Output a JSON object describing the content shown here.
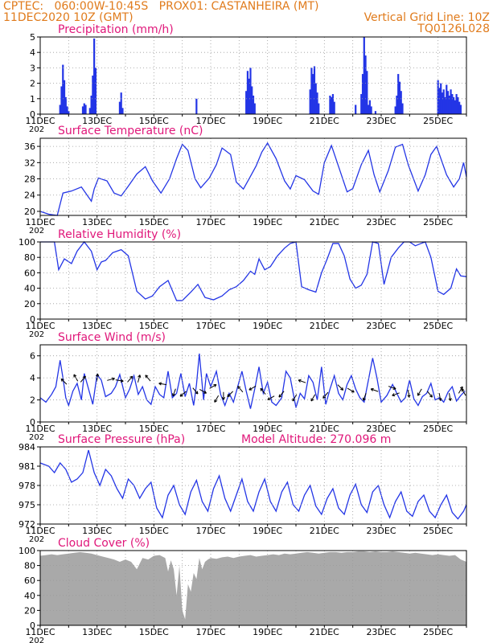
{
  "header": {
    "line1": "CPTEC:   060:00W-10:45S   PROX01: CASTANHEIRA (MT)",
    "line2_left": "11DEC2020 10Z (GMT)",
    "line2_right": "Vertical Grid Line: 10Z",
    "line3_right": "TQ0126L028"
  },
  "colors": {
    "header": "#e07b1c",
    "title": "#e0177a",
    "line": "#2335e6",
    "bar": "#2335e6",
    "cloud": "#a9a9a9",
    "arrow": "#000000",
    "grid": "#9a9a9a"
  },
  "x_axis": {
    "start_day": 11,
    "end_day": 26,
    "tick_labels": [
      "11DEC",
      "13DEC",
      "15DEC",
      "17DEC",
      "19DEC",
      "21DEC",
      "23DEC",
      "25DEC"
    ],
    "tick_days": [
      11,
      13,
      15,
      17,
      19,
      21,
      23,
      25
    ],
    "year_label": "202"
  },
  "chart_data": [
    {
      "type": "bar",
      "title": "Precipitation (mm/h)",
      "ylim": [
        0,
        5
      ],
      "yticks": [
        0,
        1,
        2,
        3,
        4,
        5
      ],
      "x": [
        11.7,
        11.75,
        11.8,
        11.85,
        11.9,
        11.95,
        12.0,
        12.5,
        12.55,
        12.6,
        12.75,
        12.8,
        12.85,
        12.9,
        12.95,
        13.8,
        13.85,
        13.9,
        16.5,
        18.25,
        18.3,
        18.35,
        18.4,
        18.45,
        18.5,
        18.55,
        20.5,
        20.55,
        20.6,
        20.65,
        20.7,
        20.75,
        20.8,
        21.2,
        21.25,
        21.3,
        21.35,
        22.1,
        22.3,
        22.35,
        22.4,
        22.45,
        22.5,
        22.55,
        22.6,
        22.65,
        22.8,
        23.5,
        23.55,
        23.6,
        23.65,
        23.7,
        23.75,
        25.0,
        25.05,
        25.1,
        25.15,
        25.2,
        25.25,
        25.3,
        25.35,
        25.4,
        25.45,
        25.5,
        25.55,
        25.6,
        25.65,
        25.7,
        25.75,
        25.8
      ],
      "values": [
        0.6,
        1.8,
        3.2,
        2.2,
        1.1,
        0.5,
        0.2,
        0.5,
        0.7,
        0.6,
        0.4,
        1.2,
        2.5,
        4.9,
        3.0,
        0.8,
        1.4,
        0.4,
        1.0,
        1.5,
        2.8,
        2.3,
        3.0,
        1.8,
        1.2,
        0.7,
        1.6,
        3.0,
        2.6,
        3.1,
        2.0,
        1.4,
        0.7,
        1.2,
        1.1,
        1.3,
        0.8,
        0.6,
        1.3,
        2.6,
        5.0,
        3.8,
        2.8,
        0.6,
        0.9,
        0.5,
        0.2,
        0.5,
        1.2,
        2.6,
        2.1,
        1.5,
        0.7,
        2.2,
        1.7,
        2.0,
        1.4,
        1.6,
        1.1,
        1.9,
        1.5,
        1.2,
        1.6,
        1.3,
        1.1,
        0.9,
        1.3,
        1.1,
        0.8,
        0.6
      ]
    },
    {
      "type": "line",
      "title": "Surface Temperature (nC)",
      "ylim": [
        19,
        38
      ],
      "yticks": [
        20,
        24,
        28,
        32,
        36
      ],
      "x": [
        11.0,
        11.3,
        11.6,
        11.8,
        12.1,
        12.45,
        12.65,
        12.8,
        12.9,
        13.05,
        13.35,
        13.6,
        13.85,
        14.1,
        14.4,
        14.7,
        14.95,
        15.25,
        15.55,
        15.8,
        16.0,
        16.2,
        16.45,
        16.65,
        16.95,
        17.2,
        17.4,
        17.7,
        17.9,
        18.15,
        18.35,
        18.6,
        18.8,
        19.0,
        19.3,
        19.6,
        19.8,
        20.0,
        20.3,
        20.6,
        20.8,
        21.0,
        21.25,
        21.55,
        21.8,
        22.0,
        22.3,
        22.55,
        22.75,
        22.95,
        23.25,
        23.5,
        23.75,
        23.95,
        24.3,
        24.55,
        24.75,
        24.95,
        25.3,
        25.55,
        25.75,
        25.9,
        26.0
      ],
      "values": [
        20.0,
        19.3,
        19.0,
        24.5,
        25.0,
        26.0,
        24.0,
        22.5,
        25.5,
        28.2,
        27.5,
        24.5,
        23.8,
        26.2,
        29.2,
        31.0,
        27.5,
        24.5,
        28.0,
        33.0,
        36.5,
        35.0,
        28.0,
        25.8,
        28.2,
        31.5,
        35.6,
        34.0,
        27.2,
        25.5,
        28.0,
        31.2,
        34.6,
        36.8,
        33.0,
        27.5,
        25.5,
        28.8,
        27.8,
        25.0,
        24.2,
        32.0,
        36.2,
        30.0,
        24.8,
        25.6,
        31.5,
        35.0,
        29.0,
        24.8,
        30.0,
        35.8,
        36.5,
        31.5,
        25.0,
        29.0,
        34.0,
        36.0,
        29.0,
        26.0,
        28.0,
        32.0,
        28.5
      ]
    },
    {
      "type": "line",
      "title": "Relative Humidity (%)",
      "ylim": [
        0,
        100
      ],
      "yticks": [
        0,
        20,
        40,
        60,
        80,
        100
      ],
      "x": [
        11.0,
        11.5,
        11.65,
        11.85,
        12.1,
        12.3,
        12.55,
        12.8,
        13.0,
        13.15,
        13.3,
        13.55,
        13.7,
        13.85,
        14.1,
        14.4,
        14.7,
        14.95,
        15.2,
        15.5,
        15.8,
        16.0,
        16.3,
        16.55,
        16.8,
        17.1,
        17.4,
        17.65,
        17.9,
        18.15,
        18.4,
        18.55,
        18.7,
        18.9,
        19.1,
        19.35,
        19.6,
        19.8,
        20.0,
        20.2,
        20.45,
        20.7,
        20.9,
        21.1,
        21.3,
        21.5,
        21.7,
        21.9,
        22.1,
        22.3,
        22.5,
        22.7,
        22.9,
        23.1,
        23.35,
        23.6,
        23.8,
        24.0,
        24.2,
        24.4,
        24.55,
        24.75,
        25.0,
        25.2,
        25.45,
        25.65,
        25.8,
        26.0
      ],
      "values": [
        100,
        100,
        64,
        78,
        72,
        88,
        100,
        88,
        64,
        74,
        76,
        86,
        88,
        90,
        82,
        36,
        26,
        30,
        42,
        50,
        24,
        24,
        35,
        45,
        28,
        25,
        30,
        38,
        42,
        50,
        62,
        58,
        78,
        64,
        68,
        82,
        92,
        98,
        100,
        42,
        38,
        35,
        60,
        78,
        98,
        98,
        82,
        52,
        40,
        44,
        58,
        100,
        98,
        45,
        80,
        92,
        100,
        100,
        95,
        98,
        100,
        80,
        36,
        32,
        40,
        65,
        56,
        55
      ]
    },
    {
      "type": "line",
      "title": "Surface Wind (m/s)",
      "ylim": [
        0,
        7
      ],
      "yticks": [
        0,
        2,
        4,
        6
      ],
      "x": [
        11.0,
        11.2,
        11.4,
        11.55,
        11.7,
        11.8,
        11.9,
        12.0,
        12.15,
        12.3,
        12.45,
        12.55,
        12.7,
        12.85,
        13.0,
        13.15,
        13.3,
        13.5,
        13.65,
        13.8,
        14.0,
        14.15,
        14.3,
        14.45,
        14.6,
        14.75,
        14.9,
        15.05,
        15.2,
        15.35,
        15.5,
        15.65,
        15.8,
        15.95,
        16.1,
        16.25,
        16.4,
        16.5,
        16.6,
        16.75,
        16.85,
        17.0,
        17.2,
        17.35,
        17.5,
        17.65,
        17.8,
        17.95,
        18.1,
        18.25,
        18.4,
        18.55,
        18.7,
        18.85,
        19.0,
        19.15,
        19.3,
        19.5,
        19.65,
        19.8,
        20.0,
        20.15,
        20.3,
        20.45,
        20.6,
        20.75,
        20.9,
        21.05,
        21.2,
        21.35,
        21.5,
        21.65,
        21.8,
        21.95,
        22.1,
        22.25,
        22.4,
        22.55,
        22.7,
        22.85,
        23.0,
        23.2,
        23.4,
        23.55,
        23.7,
        23.85,
        24.0,
        24.15,
        24.3,
        24.45,
        24.6,
        24.75,
        24.9,
        25.05,
        25.2,
        25.35,
        25.5,
        25.65,
        25.8,
        25.95
      ],
      "values": [
        2.2,
        1.8,
        2.5,
        3.2,
        5.6,
        4.0,
        2.2,
        1.5,
        2.8,
        3.5,
        2.0,
        4.4,
        3.0,
        1.6,
        4.3,
        3.8,
        2.3,
        2.6,
        3.2,
        4.3,
        2.2,
        3.0,
        4.2,
        2.5,
        3.2,
        2.0,
        1.6,
        3.2,
        2.5,
        2.2,
        4.6,
        2.2,
        2.6,
        4.4,
        2.3,
        3.5,
        1.5,
        3.4,
        6.2,
        2.0,
        4.4,
        3.2,
        4.6,
        2.5,
        1.5,
        2.6,
        1.8,
        3.2,
        4.6,
        2.8,
        1.2,
        3.0,
        5.0,
        2.6,
        3.6,
        1.8,
        1.5,
        2.2,
        4.6,
        4.0,
        1.3,
        2.6,
        2.1,
        4.2,
        3.6,
        2.0,
        5.0,
        1.6,
        3.0,
        4.2,
        2.6,
        2.0,
        3.4,
        4.2,
        3.0,
        2.2,
        1.8,
        3.8,
        5.8,
        4.0,
        1.8,
        2.4,
        3.4,
        2.6,
        1.8,
        2.2,
        3.8,
        2.1,
        1.5,
        2.3,
        2.6,
        3.5,
        2.0,
        2.2,
        1.8,
        2.7,
        3.2,
        1.9,
        2.4,
        2.8
      ],
      "arrows": {
        "x": [
          11.9,
          12.3,
          12.45,
          13.0,
          13.4,
          13.7,
          14.1,
          14.45,
          14.85,
          15.4,
          15.75,
          16.1,
          16.4,
          16.65,
          17.0,
          17.25,
          17.45,
          17.75,
          18.1,
          18.55,
          18.9,
          19.2,
          19.55,
          20.0,
          20.3,
          20.65,
          21.1,
          21.5,
          21.85,
          22.45,
          22.85,
          23.3,
          23.6,
          23.95,
          24.4,
          24.65,
          25.05,
          25.4,
          25.75,
          25.95
        ],
        "y": [
          3.5,
          3.8,
          3.7,
          3.8,
          3.8,
          3.8,
          3.7,
          3.7,
          3.8,
          3.4,
          2.9,
          2.7,
          3.0,
          2.9,
          3.1,
          2.3,
          2.6,
          2.7,
          2.8,
          3.2,
          2.6,
          2.3,
          2.7,
          2.4,
          3.6,
          2.4,
          2.6,
          3.3,
          3.0,
          2.5,
          2.8,
          3.2,
          2.6,
          2.8,
          2.9,
          2.7,
          2.5,
          2.5,
          2.7,
          2.5
        ],
        "angle": [
          315,
          330,
          40,
          5,
          75,
          100,
          40,
          15,
          320,
          280,
          200,
          230,
          140,
          120,
          60,
          210,
          180,
          225,
          320,
          240,
          320,
          240,
          220,
          210,
          290,
          210,
          220,
          135,
          120,
          200,
          290,
          110,
          250,
          170,
          210,
          140,
          170,
          170,
          30,
          330
        ]
      }
    },
    {
      "type": "line",
      "title": "Surface Pressure (hPa)",
      "annotation": "Model Altitude: 270.096  m",
      "ylim": [
        972,
        984
      ],
      "yticks": [
        972,
        975,
        978,
        981,
        984
      ],
      "x": [
        11.0,
        11.3,
        11.5,
        11.7,
        11.9,
        12.1,
        12.3,
        12.5,
        12.7,
        12.9,
        13.1,
        13.3,
        13.5,
        13.7,
        13.9,
        14.1,
        14.3,
        14.5,
        14.7,
        14.9,
        15.1,
        15.3,
        15.5,
        15.7,
        15.9,
        16.1,
        16.3,
        16.5,
        16.7,
        16.9,
        17.1,
        17.3,
        17.5,
        17.7,
        17.9,
        18.1,
        18.3,
        18.5,
        18.7,
        18.9,
        19.1,
        19.3,
        19.5,
        19.7,
        19.9,
        20.1,
        20.3,
        20.5,
        20.7,
        20.9,
        21.1,
        21.3,
        21.5,
        21.7,
        21.9,
        22.1,
        22.3,
        22.5,
        22.7,
        22.9,
        23.1,
        23.3,
        23.5,
        23.7,
        23.9,
        24.1,
        24.3,
        24.5,
        24.7,
        24.9,
        25.1,
        25.3,
        25.5,
        25.7,
        25.9,
        26.0
      ],
      "values": [
        981.5,
        981.0,
        980.0,
        981.5,
        980.5,
        978.5,
        979.0,
        980.0,
        983.5,
        980.0,
        978.0,
        980.5,
        979.5,
        977.5,
        976.0,
        979.0,
        978.0,
        976.0,
        977.5,
        978.5,
        974.5,
        973.0,
        976.5,
        978.0,
        975.0,
        973.5,
        977.0,
        978.8,
        975.5,
        974.0,
        977.5,
        979.5,
        976.0,
        974.0,
        976.5,
        979.0,
        975.5,
        974.0,
        977.0,
        979.0,
        975.5,
        974.0,
        977.0,
        978.5,
        975.0,
        974.0,
        976.5,
        978.0,
        974.8,
        973.5,
        976.0,
        977.5,
        974.5,
        973.5,
        976.5,
        978.2,
        975.0,
        973.8,
        977.0,
        978.0,
        975.0,
        973.0,
        975.5,
        977.0,
        974.0,
        973.2,
        975.5,
        976.5,
        974.0,
        973.0,
        975.0,
        976.5,
        973.8,
        972.8,
        974.0,
        975.0
      ]
    },
    {
      "type": "area",
      "title": "Cloud Cover (%)",
      "ylim": [
        0,
        100
      ],
      "yticks": [
        0,
        20,
        40,
        60,
        80,
        100
      ],
      "x": [
        11.0,
        11.2,
        11.4,
        11.6,
        11.8,
        12.0,
        12.2,
        12.4,
        12.6,
        12.8,
        13.0,
        13.2,
        13.4,
        13.6,
        13.8,
        14.0,
        14.2,
        14.4,
        14.6,
        14.8,
        15.0,
        15.2,
        15.4,
        15.5,
        15.6,
        15.7,
        15.8,
        15.9,
        16.0,
        16.1,
        16.2,
        16.3,
        16.4,
        16.5,
        16.6,
        16.7,
        16.8,
        16.9,
        17.0,
        17.2,
        17.4,
        17.6,
        17.8,
        18.0,
        18.2,
        18.4,
        18.6,
        18.8,
        19.0,
        19.2,
        19.4,
        19.6,
        19.8,
        20.0,
        20.2,
        20.4,
        20.6,
        20.8,
        21.0,
        21.2,
        21.4,
        21.6,
        21.8,
        22.0,
        22.2,
        22.4,
        22.6,
        22.8,
        23.0,
        23.2,
        23.4,
        23.6,
        23.8,
        24.0,
        24.2,
        24.4,
        24.6,
        24.8,
        25.0,
        25.2,
        25.4,
        25.6,
        25.8,
        26.0
      ],
      "values": [
        93,
        94,
        95,
        94,
        95,
        96,
        97,
        98,
        97,
        96,
        94,
        92,
        90,
        88,
        85,
        88,
        85,
        75,
        90,
        88,
        93,
        94,
        90,
        72,
        87,
        75,
        40,
        80,
        20,
        8,
        55,
        45,
        70,
        62,
        90,
        75,
        85,
        88,
        90,
        89,
        91,
        92,
        90,
        92,
        93,
        94,
        92,
        93,
        94,
        95,
        94,
        96,
        95,
        96,
        97,
        98,
        97,
        96,
        97,
        98,
        98,
        97,
        98,
        98,
        99,
        99,
        98,
        99,
        98,
        98,
        99,
        98,
        97,
        96,
        97,
        96,
        95,
        94,
        95,
        94,
        93,
        94,
        88,
        85
      ]
    }
  ]
}
